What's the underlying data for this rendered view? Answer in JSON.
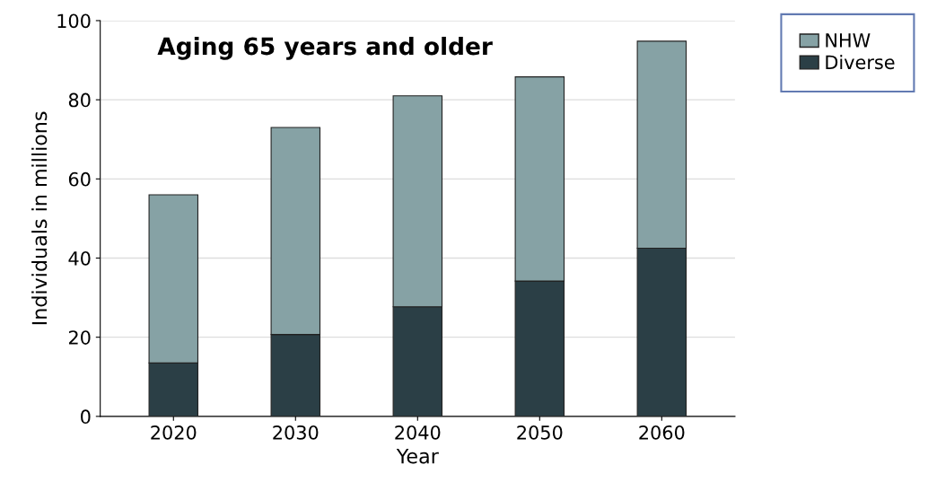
{
  "chart_data": {
    "type": "bar",
    "stacked": true,
    "title": "Aging 65 years and older",
    "xlabel": "Year",
    "ylabel": "Individuals in millions",
    "categories": [
      "2020",
      "2030",
      "2040",
      "2050",
      "2060"
    ],
    "series": [
      {
        "name": "Diverse",
        "color": "#2b3f46",
        "values": [
          13.5,
          20.7,
          27.7,
          34.2,
          42.5
        ]
      },
      {
        "name": "NHW",
        "color": "#86a2a5",
        "values": [
          42.5,
          52.3,
          53.3,
          51.6,
          52.3
        ]
      }
    ],
    "ylim": [
      0,
      100
    ],
    "yticks": [
      0,
      20,
      40,
      60,
      80,
      100
    ],
    "grid": "y",
    "legend": "top right"
  }
}
